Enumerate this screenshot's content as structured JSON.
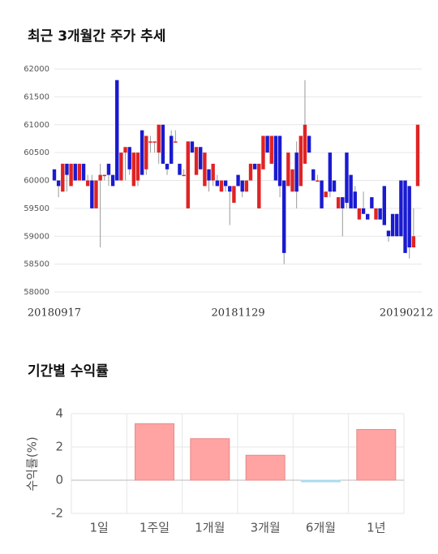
{
  "chart_data": [
    {
      "type": "candlestick",
      "title": "최근 3개월간 주가 추세",
      "categories": [
        "20180917",
        null,
        null,
        null,
        null,
        null,
        null,
        null,
        null,
        null,
        null,
        null,
        null,
        null,
        null,
        null,
        null,
        null,
        null,
        null,
        null,
        null,
        null,
        null,
        null,
        null,
        null,
        null,
        null,
        null,
        null,
        null,
        null,
        null,
        null,
        null,
        null,
        null,
        null,
        null,
        null,
        null,
        null,
        null,
        "20181129",
        null,
        null,
        null,
        null,
        null,
        null,
        null,
        null,
        null,
        null,
        null,
        null,
        null,
        null,
        null,
        null,
        null,
        null,
        null,
        null,
        null,
        null,
        null,
        null,
        null,
        null,
        null,
        null,
        null,
        null,
        null,
        null,
        null,
        null,
        null,
        null,
        null,
        null,
        null,
        null,
        null,
        null,
        "20190212"
      ],
      "candles": [
        [
          60200,
          60200,
          60000,
          60000
        ],
        [
          60000,
          60000,
          59700,
          59900
        ],
        [
          59800,
          60300,
          59800,
          60300
        ],
        [
          60300,
          60300,
          59800,
          60100
        ],
        [
          59900,
          60300,
          59900,
          60300
        ],
        [
          60300,
          60300,
          60000,
          60000
        ],
        [
          60000,
          60300,
          60000,
          60300
        ],
        [
          60300,
          60300,
          60000,
          60000
        ],
        [
          59900,
          60100,
          59900,
          60000
        ],
        [
          60000,
          60100,
          59500,
          59500
        ],
        [
          59500,
          60000,
          59500,
          60000
        ],
        [
          60000,
          60300,
          58800,
          60100
        ],
        [
          60100,
          60100,
          60000,
          60100
        ],
        [
          60300,
          60300,
          59900,
          60100
        ],
        [
          60100,
          60100,
          59900,
          59900
        ],
        [
          61800,
          61800,
          60000,
          60000
        ],
        [
          60000,
          60500,
          60000,
          60500
        ],
        [
          60500,
          60600,
          60000,
          60600
        ],
        [
          60600,
          60600,
          60100,
          60200
        ],
        [
          59900,
          60500,
          59900,
          60500
        ],
        [
          60000,
          60500,
          59900,
          60500
        ],
        [
          60900,
          60900,
          60100,
          60100
        ],
        [
          60200,
          60800,
          60100,
          60800
        ],
        [
          60700,
          60800,
          60500,
          60700
        ],
        [
          60700,
          60700,
          60500,
          60700
        ],
        [
          60500,
          61000,
          60300,
          61000
        ],
        [
          61000,
          61000,
          60300,
          60300
        ],
        [
          60300,
          60300,
          60100,
          60200
        ],
        [
          60800,
          60900,
          60300,
          60300
        ],
        [
          60700,
          60900,
          60700,
          60700
        ],
        [
          60300,
          60300,
          60100,
          60100
        ],
        [
          60100,
          60200,
          60100,
          60100
        ],
        [
          59500,
          60700,
          59500,
          60700
        ],
        [
          60700,
          60700,
          60500,
          60500
        ],
        [
          60100,
          60600,
          60100,
          60600
        ],
        [
          60600,
          60600,
          60200,
          60200
        ],
        [
          59900,
          60500,
          59900,
          60500
        ],
        [
          60200,
          60200,
          59800,
          60000
        ],
        [
          60000,
          60300,
          59900,
          60300
        ],
        [
          60000,
          60100,
          59900,
          59900
        ],
        [
          59800,
          60000,
          59800,
          60000
        ],
        [
          60000,
          60000,
          59800,
          59900
        ],
        [
          59900,
          59900,
          59200,
          59800
        ],
        [
          59600,
          59900,
          59600,
          59900
        ],
        [
          60100,
          60100,
          59900,
          59900
        ],
        [
          60000,
          60000,
          59700,
          59800
        ],
        [
          59800,
          60000,
          59800,
          60000
        ],
        [
          60000,
          60300,
          60000,
          60300
        ],
        [
          60300,
          60300,
          60200,
          60200
        ],
        [
          59500,
          60300,
          59500,
          60300
        ],
        [
          60200,
          60800,
          60200,
          60800
        ],
        [
          60800,
          60800,
          60500,
          60500
        ],
        [
          60300,
          60800,
          60300,
          60800
        ],
        [
          60800,
          60800,
          60000,
          60000
        ],
        [
          60800,
          60800,
          59700,
          59900
        ],
        [
          60000,
          60000,
          58500,
          58700
        ],
        [
          59900,
          60500,
          59900,
          60500
        ],
        [
          59800,
          60200,
          59800,
          60200
        ],
        [
          60500,
          60700,
          59500,
          59800
        ],
        [
          59900,
          60800,
          59900,
          60800
        ],
        [
          60300,
          61800,
          60300,
          61000
        ],
        [
          60800,
          60800,
          60500,
          60500
        ],
        [
          60200,
          60200,
          60000,
          60000
        ],
        [
          60000,
          60100,
          60000,
          60000
        ],
        [
          60000,
          60000,
          59500,
          59500
        ],
        [
          59700,
          59800,
          59700,
          59800
        ],
        [
          60500,
          60500,
          59700,
          59800
        ],
        [
          60000,
          60000,
          59800,
          59800
        ],
        [
          59500,
          59700,
          59500,
          59700
        ],
        [
          59700,
          59700,
          59000,
          59500
        ],
        [
          60500,
          60500,
          59500,
          59600
        ],
        [
          60100,
          60100,
          59500,
          59500
        ],
        [
          59800,
          59900,
          59500,
          59500
        ],
        [
          59300,
          59500,
          59300,
          59500
        ],
        [
          59500,
          59800,
          59400,
          59400
        ],
        [
          59400,
          59400,
          59300,
          59300
        ],
        [
          59700,
          59700,
          59500,
          59500
        ],
        [
          59300,
          59500,
          59300,
          59500
        ],
        [
          59500,
          59500,
          59300,
          59300
        ],
        [
          59900,
          59900,
          59200,
          59200
        ],
        [
          59100,
          59100,
          58900,
          59000
        ],
        [
          59400,
          59400,
          59000,
          59000
        ],
        [
          59400,
          59400,
          59000,
          59000
        ],
        [
          60000,
          60000,
          59000,
          59000
        ],
        [
          60000,
          60000,
          58700,
          58700
        ],
        [
          59900,
          59900,
          58600,
          58800
        ],
        [
          58800,
          59500,
          58800,
          59000
        ],
        [
          59900,
          61000,
          59900,
          61000
        ]
      ],
      "up_color": "#e02323",
      "down_color": "#1a1ad0",
      "wick_color": "#999999",
      "ylim": [
        58000,
        62000
      ],
      "yticks": [
        58000,
        58500,
        59000,
        59500,
        60000,
        60500,
        61000,
        61500,
        62000
      ],
      "grid": true
    },
    {
      "type": "bar",
      "title": "기간별 수익률",
      "ylabel": "수익률(%)",
      "categories": [
        "1일",
        "1주일",
        "1개월",
        "3개월",
        "6개월",
        "1년"
      ],
      "values": [
        0,
        3.4,
        2.5,
        1.5,
        -0.1,
        3.05
      ],
      "positive_color": "#ffa3a3",
      "negative_color": "#a8dcef",
      "ylim": [
        -2,
        4
      ],
      "yticks": [
        -2,
        0,
        2,
        4
      ],
      "grid": true
    }
  ]
}
